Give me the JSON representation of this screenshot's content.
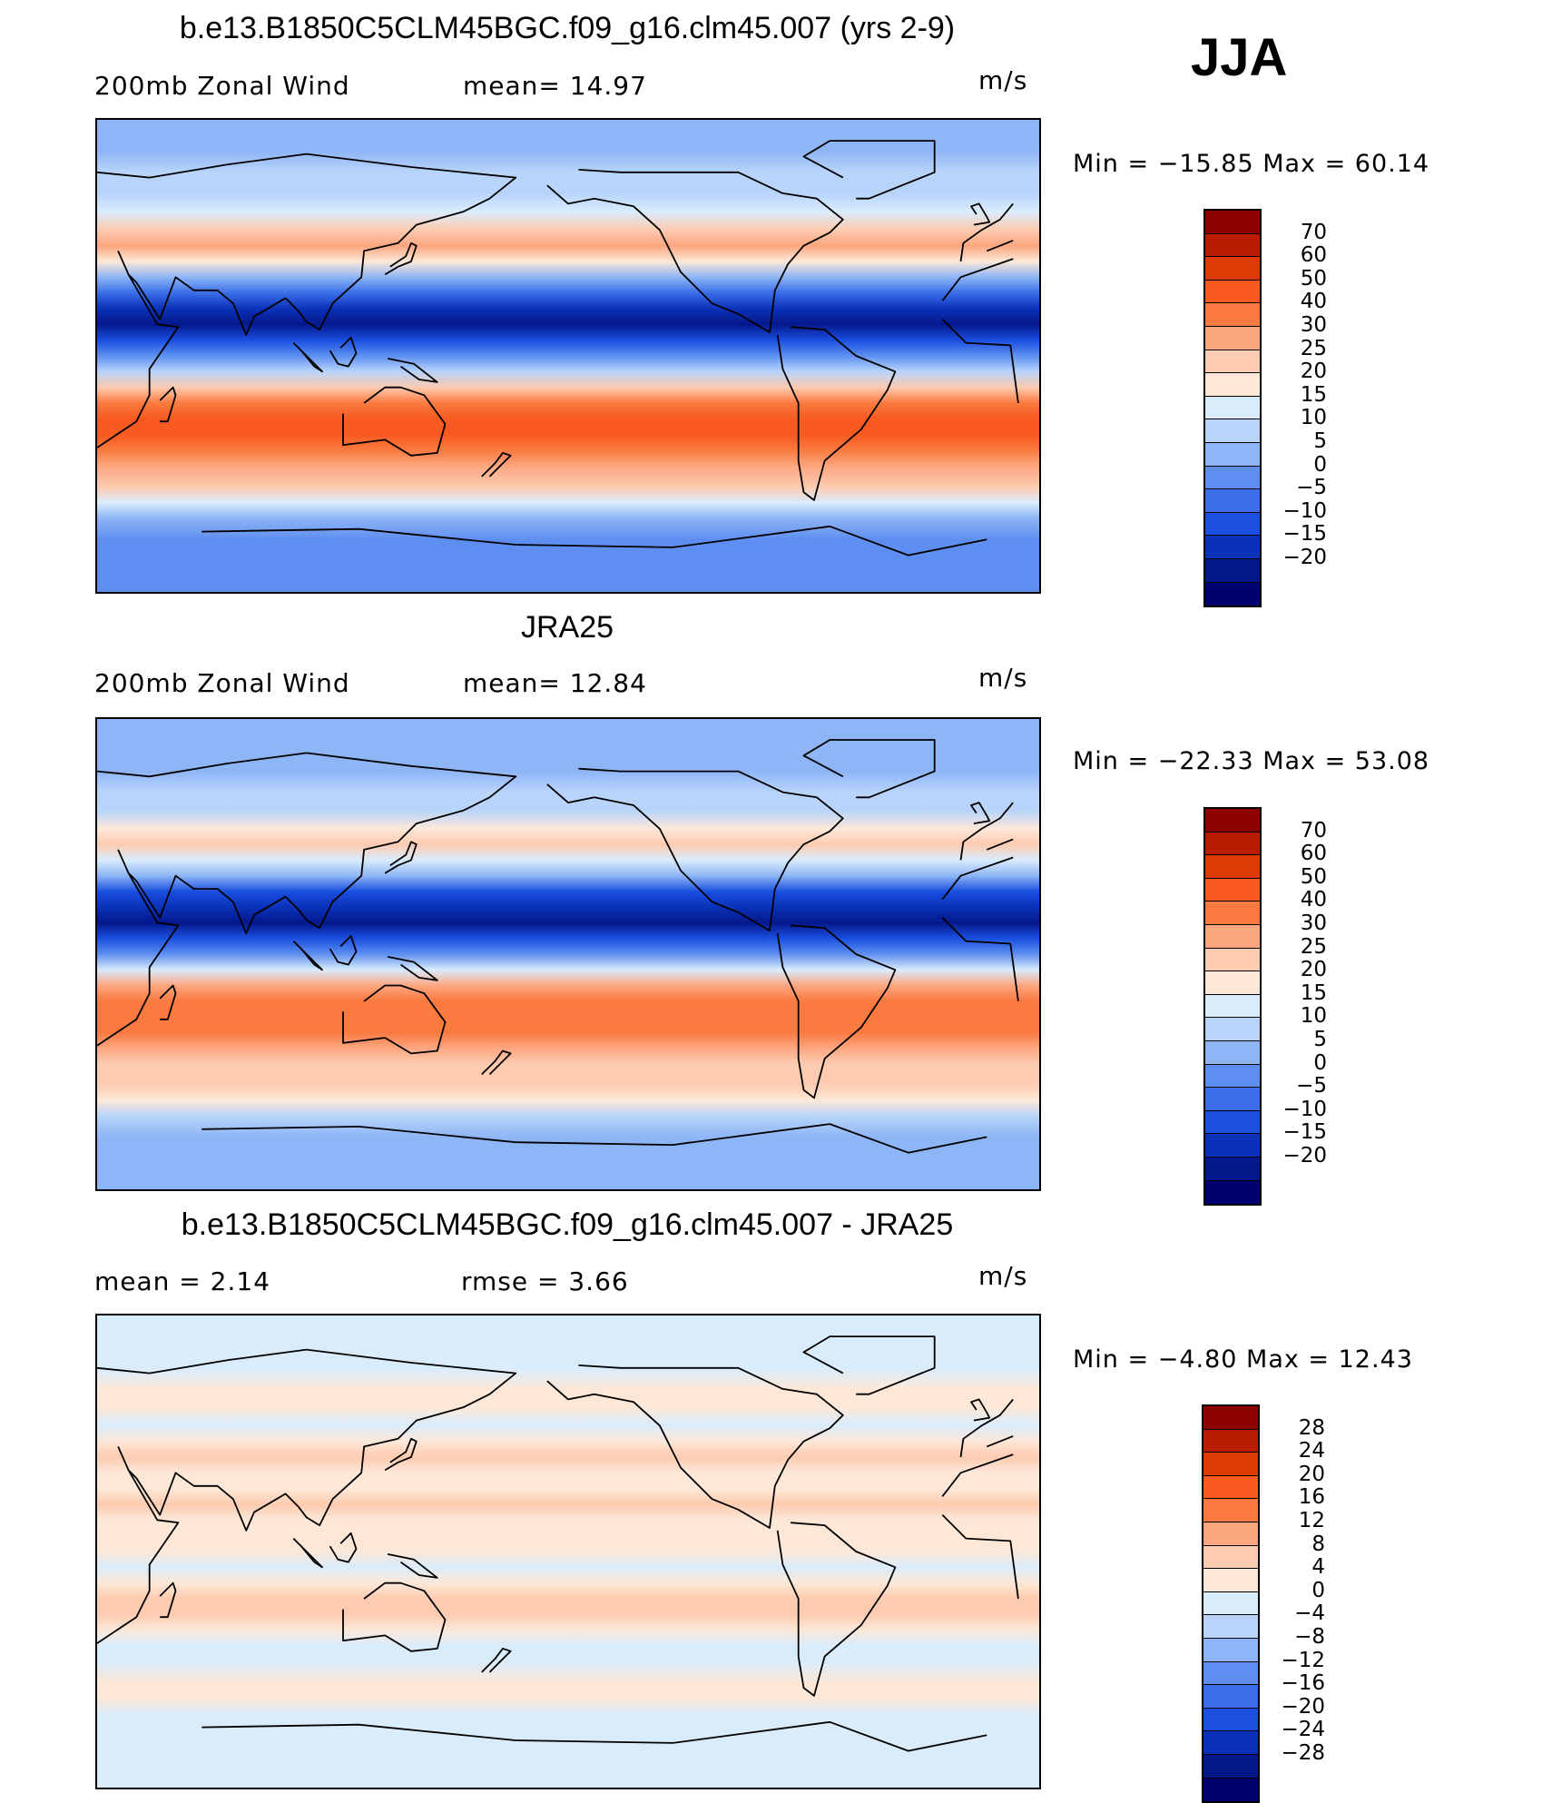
{
  "season": "JJA",
  "units": "m/s",
  "palette_main": [
    "#8c0000",
    "#b81d00",
    "#dd3a05",
    "#f85a20",
    "#fa7a40",
    "#fca680",
    "#fdcbb0",
    "#fde8d8",
    "#d9ecfc",
    "#b8d4fb",
    "#8eb5f6",
    "#5e8ff0",
    "#3b6ee8",
    "#1a4fe0",
    "#0a32b8",
    "#04188c",
    "#000070"
  ],
  "palette_diff": [
    "#8c0000",
    "#b81d00",
    "#dd3a05",
    "#f85a20",
    "#fa7a40",
    "#fca680",
    "#fdcbb0",
    "#fde8d8",
    "#d9ecfc",
    "#b8d4fb",
    "#8eb5f6",
    "#5e8ff0",
    "#3b6ee8",
    "#1a4fe0",
    "#0a32b8",
    "#04188c",
    "#000070"
  ],
  "panels": [
    {
      "title": "b.e13.B1850C5CLM45BGC.f09_g16.clm45.007 (yrs 2-9)",
      "left_label": "200mb  Zonal  Wind",
      "center_label": "mean=   14.97",
      "right_label": "m/s",
      "minmax": "Min  =  −15.85  Max  =    60.14",
      "cbar_ticks": [
        "70",
        "60",
        "50",
        "40",
        "30",
        "25",
        "20",
        "15",
        "10",
        "5",
        "0",
        "−5",
        "−10",
        "−15",
        "−20"
      ],
      "bands": [
        {
          "lat": 90,
          "lvl": 10
        },
        {
          "lat": 78,
          "lvl": 10
        },
        {
          "lat": 70,
          "lvl": 9
        },
        {
          "lat": 62,
          "lvl": 9
        },
        {
          "lat": 55,
          "lvl": 8
        },
        {
          "lat": 48,
          "lvl": 6
        },
        {
          "lat": 42,
          "lvl": 5
        },
        {
          "lat": 36,
          "lvl": 7
        },
        {
          "lat": 30,
          "lvl": 10
        },
        {
          "lat": 24,
          "lvl": 12
        },
        {
          "lat": 18,
          "lvl": 14
        },
        {
          "lat": 12,
          "lvl": 15
        },
        {
          "lat": 6,
          "lvl": 13
        },
        {
          "lat": 0,
          "lvl": 11
        },
        {
          "lat": -6,
          "lvl": 9
        },
        {
          "lat": -12,
          "lvl": 6
        },
        {
          "lat": -18,
          "lvl": 4
        },
        {
          "lat": -24,
          "lvl": 3
        },
        {
          "lat": -30,
          "lvl": 3
        },
        {
          "lat": -36,
          "lvl": 4
        },
        {
          "lat": -42,
          "lvl": 5
        },
        {
          "lat": -50,
          "lvl": 6
        },
        {
          "lat": -56,
          "lvl": 8
        },
        {
          "lat": -62,
          "lvl": 10
        },
        {
          "lat": -70,
          "lvl": 11
        },
        {
          "lat": -80,
          "lvl": 11
        },
        {
          "lat": -90,
          "lvl": 11
        }
      ]
    },
    {
      "title": "JRA25",
      "left_label": "200mb  Zonal  Wind",
      "center_label": "mean=   12.84",
      "right_label": "m/s",
      "minmax": "Min  =  −22.33  Max  =    53.08",
      "cbar_ticks": [
        "70",
        "60",
        "50",
        "40",
        "30",
        "25",
        "20",
        "15",
        "10",
        "5",
        "0",
        "−5",
        "−10",
        "−15",
        "−20"
      ],
      "bands": [
        {
          "lat": 90,
          "lvl": 10
        },
        {
          "lat": 78,
          "lvl": 10
        },
        {
          "lat": 70,
          "lvl": 10
        },
        {
          "lat": 62,
          "lvl": 9
        },
        {
          "lat": 55,
          "lvl": 9
        },
        {
          "lat": 48,
          "lvl": 7
        },
        {
          "lat": 42,
          "lvl": 6
        },
        {
          "lat": 36,
          "lvl": 8
        },
        {
          "lat": 30,
          "lvl": 10
        },
        {
          "lat": 24,
          "lvl": 13
        },
        {
          "lat": 18,
          "lvl": 14
        },
        {
          "lat": 12,
          "lvl": 15
        },
        {
          "lat": 6,
          "lvl": 13
        },
        {
          "lat": 0,
          "lvl": 11
        },
        {
          "lat": -6,
          "lvl": 8
        },
        {
          "lat": -12,
          "lvl": 5
        },
        {
          "lat": -18,
          "lvl": 4
        },
        {
          "lat": -24,
          "lvl": 4
        },
        {
          "lat": -30,
          "lvl": 4
        },
        {
          "lat": -36,
          "lvl": 5
        },
        {
          "lat": -42,
          "lvl": 6
        },
        {
          "lat": -50,
          "lvl": 6
        },
        {
          "lat": -56,
          "lvl": 7
        },
        {
          "lat": -62,
          "lvl": 9
        },
        {
          "lat": -70,
          "lvl": 10
        },
        {
          "lat": -80,
          "lvl": 10
        },
        {
          "lat": -90,
          "lvl": 10
        }
      ]
    },
    {
      "title": "b.e13.B1850C5CLM45BGC.f09_g16.clm45.007 - JRA25",
      "left_label": "mean  =      2.14",
      "center_label": "rmse  =      3.66",
      "right_label": "m/s",
      "minmax": "Min  =     −4.80  Max  =    12.43",
      "cbar_ticks": [
        "28",
        "24",
        "20",
        "16",
        "12",
        "8",
        "4",
        "0",
        "−4",
        "−8",
        "−12",
        "−16",
        "−20",
        "−24",
        "−28"
      ],
      "bands": [
        {
          "lat": 90,
          "lvl": 8
        },
        {
          "lat": 78,
          "lvl": 8
        },
        {
          "lat": 70,
          "lvl": 8
        },
        {
          "lat": 62,
          "lvl": 7
        },
        {
          "lat": 55,
          "lvl": 7
        },
        {
          "lat": 48,
          "lvl": 8
        },
        {
          "lat": 42,
          "lvl": 7
        },
        {
          "lat": 36,
          "lvl": 6
        },
        {
          "lat": 30,
          "lvl": 7
        },
        {
          "lat": 24,
          "lvl": 7
        },
        {
          "lat": 18,
          "lvl": 6
        },
        {
          "lat": 12,
          "lvl": 7
        },
        {
          "lat": 6,
          "lvl": 7
        },
        {
          "lat": 0,
          "lvl": 7
        },
        {
          "lat": -6,
          "lvl": 8
        },
        {
          "lat": -12,
          "lvl": 7
        },
        {
          "lat": -18,
          "lvl": 6
        },
        {
          "lat": -24,
          "lvl": 6
        },
        {
          "lat": -30,
          "lvl": 7
        },
        {
          "lat": -36,
          "lvl": 8
        },
        {
          "lat": -42,
          "lvl": 8
        },
        {
          "lat": -50,
          "lvl": 7
        },
        {
          "lat": -56,
          "lvl": 7
        },
        {
          "lat": -62,
          "lvl": 8
        },
        {
          "lat": -70,
          "lvl": 8
        },
        {
          "lat": -80,
          "lvl": 8
        },
        {
          "lat": -90,
          "lvl": 8
        }
      ]
    }
  ]
}
